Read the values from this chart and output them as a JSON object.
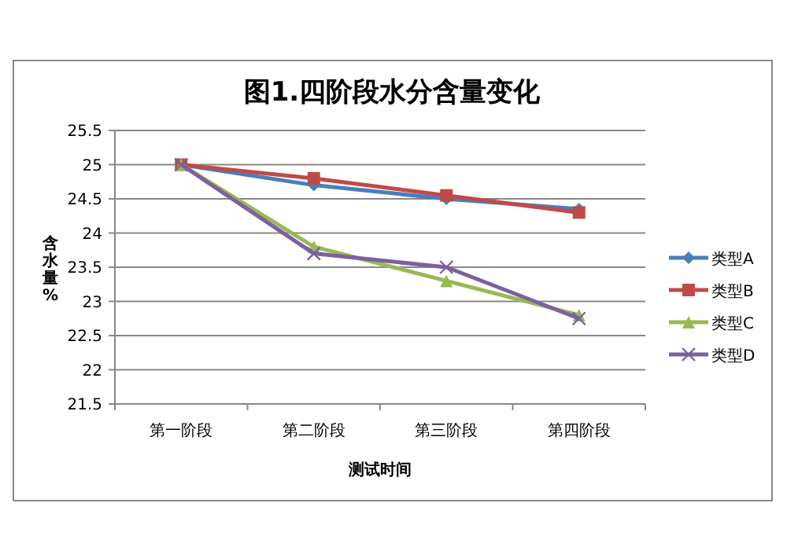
{
  "chart_data": {
    "type": "line",
    "title": "图1.四阶段水分含量变化",
    "xlabel": "测试时间",
    "ylabel": "含水量%",
    "categories": [
      "第一阶段",
      "第二阶段",
      "第三阶段",
      "第四阶段"
    ],
    "series": [
      {
        "name": "类型A",
        "color": "#4a7ebb",
        "marker": "diamond",
        "values": [
          25,
          24.7,
          24.5,
          24.35
        ]
      },
      {
        "name": "类型B",
        "color": "#be4b48",
        "marker": "square",
        "values": [
          25,
          24.8,
          24.55,
          24.3
        ]
      },
      {
        "name": "类型C",
        "color": "#98b954",
        "marker": "triangle",
        "values": [
          25,
          23.8,
          23.3,
          22.8
        ]
      },
      {
        "name": "类型D",
        "color": "#7d60a0",
        "marker": "cross",
        "values": [
          25,
          23.7,
          23.5,
          22.75
        ]
      }
    ],
    "ylim": [
      21.5,
      25.5
    ],
    "yticks": [
      21.5,
      22,
      22.5,
      23,
      23.5,
      24,
      24.5,
      25,
      25.5
    ],
    "grid": "y",
    "legend": "right"
  }
}
